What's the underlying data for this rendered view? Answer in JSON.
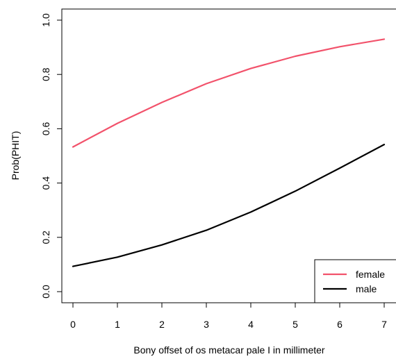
{
  "chart_data": {
    "type": "line",
    "title": "",
    "xlabel": "Bony offset of os metacar pale I in millimeter",
    "ylabel": "Prob(PHIT)",
    "xlim": [
      0,
      7
    ],
    "ylim": [
      0,
      1
    ],
    "x_ticks": [
      "0",
      "1",
      "2",
      "3",
      "4",
      "5",
      "6",
      "7"
    ],
    "y_ticks": [
      "0.0",
      "0.2",
      "0.4",
      "0.6",
      "0.8",
      "1.0"
    ],
    "grid": false,
    "legend_position": "bottom-right",
    "series": [
      {
        "name": "female",
        "color": "#f2526b",
        "x": [
          0,
          1,
          2,
          3,
          4,
          5,
          6,
          7
        ],
        "y": [
          0.533,
          0.62,
          0.697,
          0.766,
          0.822,
          0.867,
          0.902,
          0.93
        ]
      },
      {
        "name": "male",
        "color": "#000000",
        "x": [
          0,
          1,
          2,
          3,
          4,
          5,
          6,
          7
        ],
        "y": [
          0.093,
          0.127,
          0.172,
          0.226,
          0.293,
          0.37,
          0.455,
          0.542
        ]
      }
    ]
  }
}
